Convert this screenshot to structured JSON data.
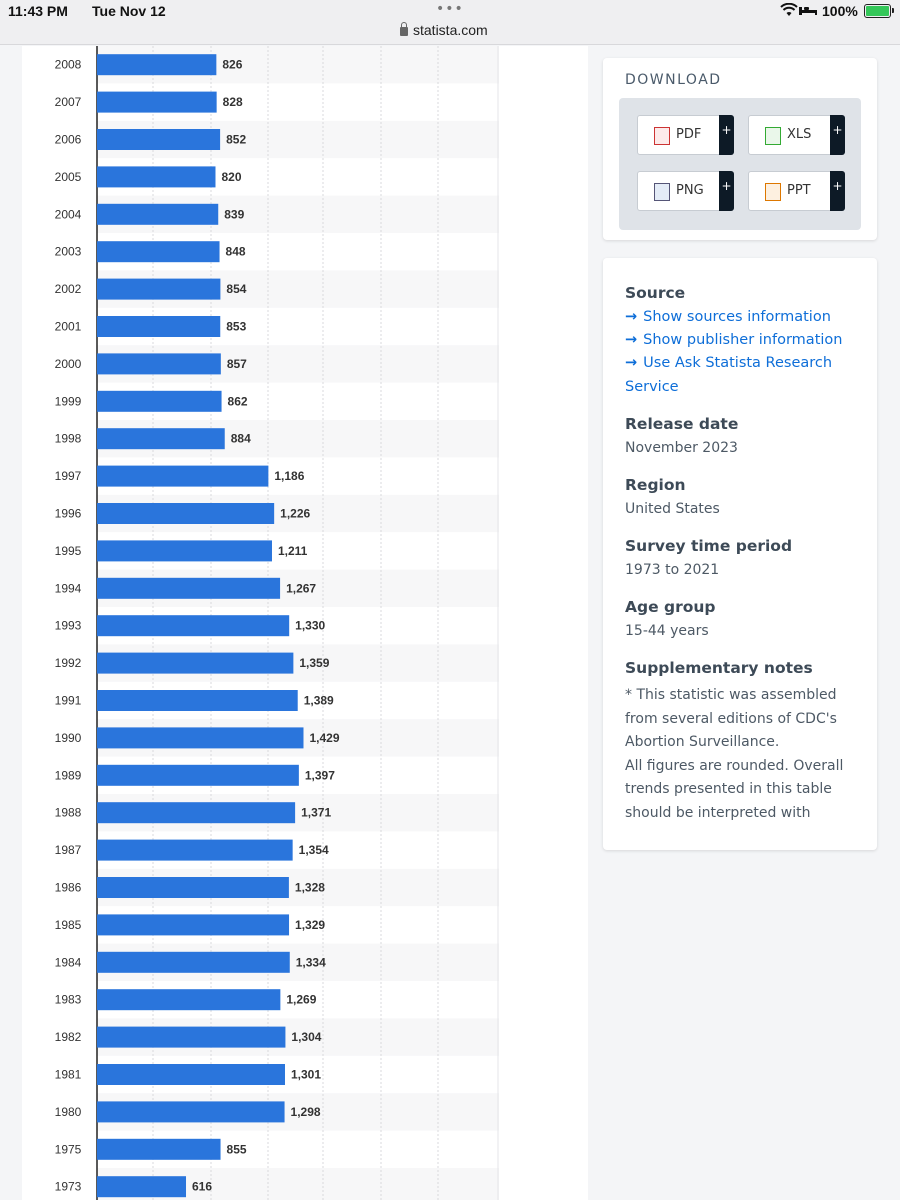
{
  "status_bar": {
    "time": "11:43 PM",
    "date": "Tue Nov 12",
    "url": "statista.com",
    "battery": "100%"
  },
  "download": {
    "title": "DOWNLOAD",
    "buttons": [
      {
        "label": "PDF",
        "icon": "pdf-file-icon"
      },
      {
        "label": "XLS",
        "icon": "xls-file-icon"
      },
      {
        "label": "PNG",
        "icon": "png-file-icon"
      },
      {
        "label": "PPT",
        "icon": "ppt-file-icon"
      }
    ],
    "plus": "+"
  },
  "info": {
    "source_heading": "Source",
    "links": [
      "Show sources information",
      "Show publisher information",
      "Use Ask Statista Research",
      "Service"
    ],
    "release_heading": "Release date",
    "release_value": "November 2023",
    "region_heading": "Region",
    "region_value": "United States",
    "survey_heading": "Survey time period",
    "survey_value": "1973 to 2021",
    "age_heading": "Age group",
    "age_value": "15-44 years",
    "notes_heading": "Supplementary notes",
    "notes_lines": [
      "* This statistic was assembled",
      "from several editions of CDC's",
      "Abortion Surveillance.",
      "All figures are rounded. Overall",
      "trends presented in this table",
      "should be interpreted with"
    ]
  },
  "colors": {
    "bar": "#2a75dc",
    "link": "#0e6ed8"
  },
  "chart_data": {
    "type": "bar",
    "orientation": "horizontal",
    "categories": [
      "2008",
      "2007",
      "2006",
      "2005",
      "2004",
      "2003",
      "2002",
      "2001",
      "2000",
      "1999",
      "1998",
      "1997",
      "1996",
      "1995",
      "1994",
      "1993",
      "1992",
      "1991",
      "1990",
      "1989",
      "1988",
      "1987",
      "1986",
      "1985",
      "1984",
      "1983",
      "1982",
      "1981",
      "1980",
      "1975",
      "1973"
    ],
    "values": [
      826,
      828,
      852,
      820,
      839,
      848,
      854,
      853,
      857,
      862,
      884,
      1186,
      1226,
      1211,
      1267,
      1330,
      1359,
      1389,
      1429,
      1397,
      1371,
      1354,
      1328,
      1329,
      1334,
      1269,
      1304,
      1301,
      1298,
      855,
      616
    ],
    "value_labels": [
      "826",
      "828",
      "852",
      "820",
      "839",
      "848",
      "854",
      "853",
      "857",
      "862",
      "884",
      "1,186",
      "1,226",
      "1,211",
      "1,267",
      "1,330",
      "1,359",
      "1,389",
      "1,429",
      "1,397",
      "1,371",
      "1,354",
      "1,328",
      "1,329",
      "1,334",
      "1,269",
      "1,304",
      "1,301",
      "1,298",
      "855",
      "616"
    ],
    "xlim": [
      0,
      1750
    ],
    "grid": true
  }
}
